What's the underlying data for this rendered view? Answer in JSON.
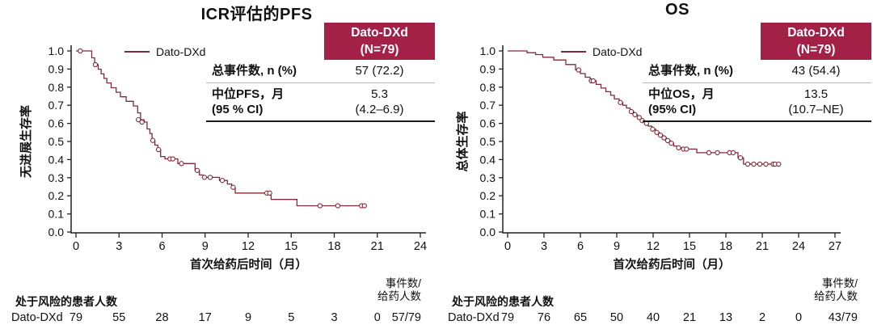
{
  "colors": {
    "accent": "#A32147",
    "curve": "#82293A",
    "axis": "#222222",
    "text": "#111111"
  },
  "panels": [
    {
      "title": "ICR评估的PFS",
      "legend_label": "Dato-DXd",
      "stats": {
        "header_line1": "Dato-DXd",
        "header_line2": "(N=79)",
        "row1_label": "总事件数, n (%)",
        "row1_value": "57 (72.2)",
        "row2_label_line1": "中位PFS，月",
        "row2_label_line2": "(95 % CI)",
        "row2_value_line1": "5.3",
        "row2_value_line2": "(4.2–6.9)"
      },
      "at_risk_header": "处于风险的患者人数",
      "events_header_line1": "事件数/",
      "events_header_line2": "给药人数"
    },
    {
      "title": "OS",
      "legend_label": "Dato-DXd",
      "stats": {
        "header_line1": "Dato-DXd",
        "header_line2": "(N=79)",
        "row1_label": "总事件数, n (%)",
        "row1_value": "43 (54.4)",
        "row2_label_line1": "中位OS，月",
        "row2_label_line2": "(95% CI)",
        "row2_value_line1": "13.5",
        "row2_value_line2": "(10.7–NE)"
      },
      "at_risk_header": "处于风险的患者人数",
      "events_header_line1": "事件数/",
      "events_header_line2": "给药人数"
    }
  ],
  "chart_data": [
    {
      "type": "line",
      "subtype": "kaplan-meier-step",
      "title": "ICR评估的PFS",
      "series_name": "Dato-DXd",
      "xlabel": "首次给药后时间（月）",
      "ylabel": "无进展生存率",
      "xlim": [
        0,
        24
      ],
      "ylim": [
        0,
        1
      ],
      "xticks": [
        0,
        3,
        6,
        9,
        12,
        15,
        18,
        21,
        24
      ],
      "yticks": [
        "1.0",
        "0.9",
        "0.8",
        "0.7",
        "0.6",
        "0.5",
        "0.4",
        "0.3",
        "0.2",
        "0.1",
        "0.0"
      ],
      "events_n_pct": "57 (72.2)",
      "median_months": "5.3",
      "ci95": "4.2–6.9",
      "steps": [
        [
          0,
          1.0
        ],
        [
          1.1,
          0.962
        ],
        [
          1.3,
          0.924
        ],
        [
          1.55,
          0.899
        ],
        [
          1.75,
          0.873
        ],
        [
          1.95,
          0.848
        ],
        [
          2.15,
          0.823
        ],
        [
          2.45,
          0.797
        ],
        [
          2.8,
          0.772
        ],
        [
          3.1,
          0.747
        ],
        [
          3.5,
          0.722
        ],
        [
          4.0,
          0.696
        ],
        [
          4.3,
          0.658
        ],
        [
          4.5,
          0.62
        ],
        [
          4.75,
          0.607
        ],
        [
          4.95,
          0.569
        ],
        [
          5.15,
          0.544
        ],
        [
          5.3,
          0.506
        ],
        [
          5.5,
          0.48
        ],
        [
          5.7,
          0.455
        ],
        [
          5.9,
          0.417
        ],
        [
          6.2,
          0.404
        ],
        [
          7.1,
          0.378
        ],
        [
          8.3,
          0.34
        ],
        [
          8.6,
          0.315
        ],
        [
          8.85,
          0.302
        ],
        [
          10.0,
          0.285
        ],
        [
          10.55,
          0.265
        ],
        [
          10.85,
          0.247
        ],
        [
          11.1,
          0.215
        ],
        [
          13.6,
          0.18
        ],
        [
          15.4,
          0.145
        ]
      ],
      "end_time": 20.2,
      "censor_marks": [
        [
          0.3,
          1.0
        ],
        [
          1.35,
          0.924
        ],
        [
          4.35,
          0.62
        ],
        [
          4.6,
          0.607
        ],
        [
          5.35,
          0.506
        ],
        [
          5.75,
          0.455
        ],
        [
          6.55,
          0.404
        ],
        [
          6.75,
          0.404
        ],
        [
          7.35,
          0.378
        ],
        [
          8.45,
          0.34
        ],
        [
          8.95,
          0.302
        ],
        [
          9.35,
          0.302
        ],
        [
          10.2,
          0.285
        ],
        [
          10.95,
          0.247
        ],
        [
          13.3,
          0.215
        ],
        [
          13.5,
          0.215
        ],
        [
          17.0,
          0.145
        ],
        [
          18.25,
          0.145
        ],
        [
          19.9,
          0.145
        ],
        [
          20.1,
          0.145
        ]
      ],
      "at_risk": {
        "label": "Dato-DXd",
        "times": [
          0,
          3,
          6,
          9,
          12,
          15,
          18,
          21
        ],
        "counts": [
          79,
          55,
          28,
          17,
          9,
          5,
          3,
          0
        ],
        "events_over_n": "57/79"
      }
    },
    {
      "type": "line",
      "subtype": "kaplan-meier-step",
      "title": "OS",
      "series_name": "Dato-DXd",
      "xlabel": "首次给药后时间（月）",
      "ylabel": "总体生存率",
      "xlim": [
        0,
        27
      ],
      "ylim": [
        0,
        1
      ],
      "xticks": [
        0,
        3,
        6,
        9,
        12,
        15,
        18,
        21,
        24,
        27
      ],
      "yticks": [
        "1.0",
        "0.9",
        "0.8",
        "0.7",
        "0.6",
        "0.5",
        "0.4",
        "0.3",
        "0.2",
        "0.1",
        "0.0"
      ],
      "events_n_pct": "43 (54.4)",
      "median_months": "13.5",
      "ci95": "10.7–NE",
      "steps": [
        [
          0,
          1.0
        ],
        [
          1.6,
          0.99
        ],
        [
          2.3,
          0.98
        ],
        [
          2.9,
          0.965
        ],
        [
          3.8,
          0.95
        ],
        [
          4.8,
          0.925
        ],
        [
          5.6,
          0.895
        ],
        [
          6.0,
          0.875
        ],
        [
          6.4,
          0.855
        ],
        [
          6.8,
          0.835
        ],
        [
          7.3,
          0.815
        ],
        [
          7.7,
          0.795
        ],
        [
          8.1,
          0.775
        ],
        [
          8.5,
          0.755
        ],
        [
          8.8,
          0.735
        ],
        [
          9.2,
          0.715
        ],
        [
          9.5,
          0.7
        ],
        [
          9.8,
          0.685
        ],
        [
          10.1,
          0.665
        ],
        [
          10.4,
          0.648
        ],
        [
          10.7,
          0.632
        ],
        [
          11.0,
          0.615
        ],
        [
          11.3,
          0.6
        ],
        [
          11.6,
          0.585
        ],
        [
          11.9,
          0.568
        ],
        [
          12.2,
          0.55
        ],
        [
          12.5,
          0.535
        ],
        [
          12.8,
          0.52
        ],
        [
          13.1,
          0.505
        ],
        [
          13.4,
          0.49
        ],
        [
          13.7,
          0.475
        ],
        [
          14.0,
          0.465
        ],
        [
          14.4,
          0.458
        ],
        [
          15.6,
          0.438
        ],
        [
          19.0,
          0.41
        ],
        [
          19.45,
          0.375
        ]
      ],
      "end_time": 22.45,
      "censor_marks": [
        [
          5.85,
          0.895
        ],
        [
          6.9,
          0.835
        ],
        [
          7.05,
          0.835
        ],
        [
          9.3,
          0.715
        ],
        [
          10.2,
          0.665
        ],
        [
          10.5,
          0.648
        ],
        [
          10.85,
          0.632
        ],
        [
          11.1,
          0.615
        ],
        [
          11.45,
          0.6
        ],
        [
          11.95,
          0.568
        ],
        [
          12.3,
          0.55
        ],
        [
          12.6,
          0.535
        ],
        [
          12.9,
          0.52
        ],
        [
          13.2,
          0.505
        ],
        [
          13.5,
          0.49
        ],
        [
          14.1,
          0.465
        ],
        [
          14.5,
          0.458
        ],
        [
          14.75,
          0.458
        ],
        [
          16.6,
          0.438
        ],
        [
          17.3,
          0.438
        ],
        [
          18.3,
          0.438
        ],
        [
          18.6,
          0.438
        ],
        [
          19.2,
          0.41
        ],
        [
          19.8,
          0.375
        ],
        [
          20.3,
          0.375
        ],
        [
          20.8,
          0.375
        ],
        [
          21.3,
          0.375
        ],
        [
          21.9,
          0.375
        ],
        [
          22.05,
          0.375
        ],
        [
          22.35,
          0.375
        ]
      ],
      "at_risk": {
        "label": "Dato-DXd",
        "times": [
          0,
          3,
          6,
          9,
          12,
          15,
          18,
          21,
          24
        ],
        "counts": [
          79,
          76,
          65,
          50,
          40,
          21,
          13,
          2,
          0
        ],
        "events_over_n": "43/79"
      }
    }
  ]
}
